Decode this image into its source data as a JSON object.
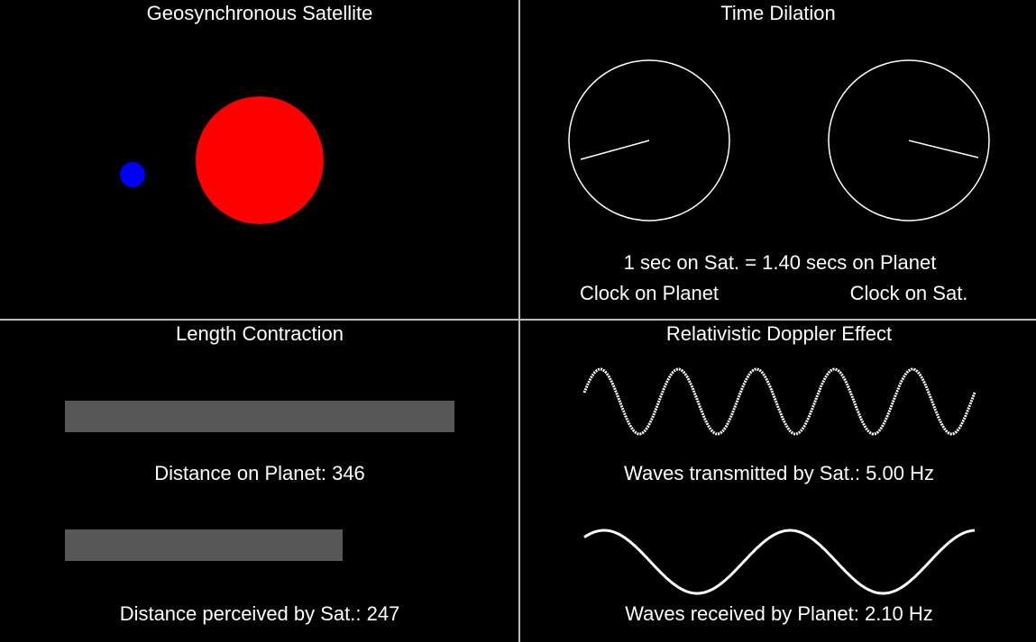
{
  "panels": {
    "satellite": {
      "title": "Geosynchronous Satellite",
      "planet_color": "#ff0000",
      "satellite_color": "#0000ff"
    },
    "time_dilation": {
      "title": "Time Dilation",
      "ratio_text": "1 sec on Sat. = 1.40 secs on Planet",
      "planet_clock_label": "Clock on Planet",
      "sat_clock_label": "Clock on Sat."
    },
    "length": {
      "title": "Length Contraction",
      "planet_distance_label": "Distance on Planet: 346",
      "sat_distance_label": "Distance perceived by Sat.: 247",
      "planet_distance": 346,
      "sat_distance": 247,
      "bar_color": "#575757"
    },
    "doppler": {
      "title": "Relativistic Doppler Effect",
      "transmitted_label": "Waves transmitted by Sat.: 5.00 Hz",
      "received_label": "Waves received by Planet: 2.10 Hz",
      "transmitted_hz": 5.0,
      "received_hz": 2.1
    }
  }
}
